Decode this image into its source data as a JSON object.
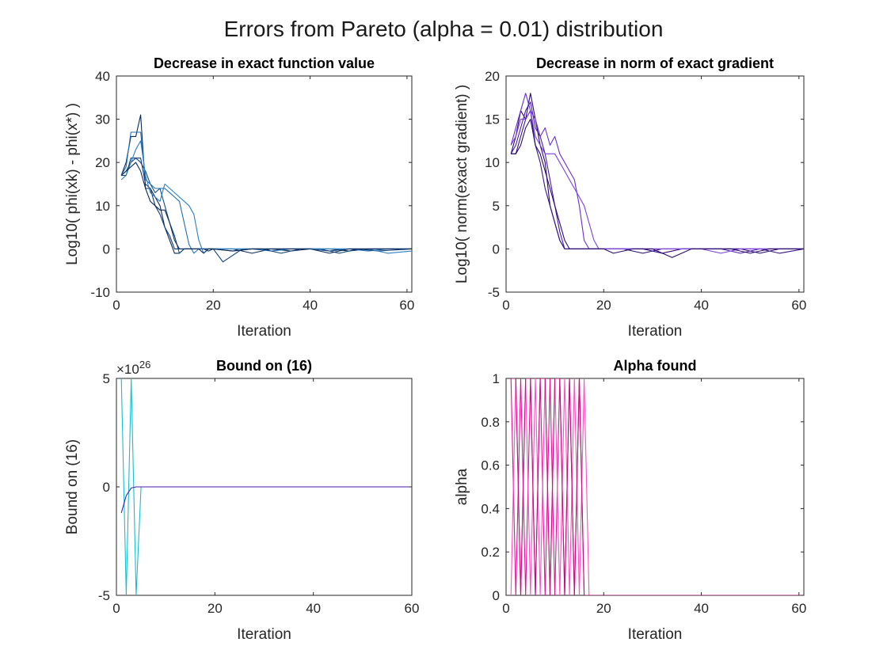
{
  "figure": {
    "title": "Errors from Pareto (alpha = 0.01) distribution"
  },
  "chart_data": [
    {
      "type": "line",
      "title": "Decrease in exact function value",
      "xlabel": "Iteration",
      "ylabel": "Log10( phi(xk) - phi(x*) )",
      "xlim": [
        0,
        61
      ],
      "ylim": [
        -10,
        40
      ],
      "xticks": [
        "0",
        "20",
        "40",
        "60"
      ],
      "yticks": [
        "-10",
        "0",
        "10",
        "20",
        "30",
        "40"
      ],
      "xtick_values": [
        0,
        20,
        40,
        60
      ],
      "ytick_values": [
        -10,
        0,
        10,
        20,
        30,
        40
      ],
      "colors": [
        "#0b2a5a",
        "#114a8a",
        "#1f6fb5",
        "#0e3c78",
        "#2a7fc0"
      ],
      "series": [
        {
          "x": [
            1,
            2,
            3,
            4,
            5,
            6,
            7,
            8,
            9,
            10,
            11,
            12,
            13,
            14,
            15,
            16,
            17,
            18,
            19,
            20,
            24,
            28,
            32,
            36,
            40,
            44,
            48,
            52,
            56,
            61
          ],
          "values": [
            17,
            20,
            26,
            26,
            31,
            14,
            14,
            12,
            10,
            5,
            2,
            -1,
            -1,
            0,
            0,
            0,
            0,
            0,
            -0.5,
            0,
            0,
            -1,
            0,
            -0.5,
            0,
            0,
            -0.5,
            0,
            0,
            0
          ]
        },
        {
          "x": [
            1,
            2,
            3,
            4,
            5,
            6,
            7,
            8,
            9,
            10,
            11,
            12,
            13,
            14,
            15,
            16,
            17,
            18,
            19,
            20,
            24,
            28,
            32,
            36,
            40,
            44,
            48,
            52,
            56,
            61
          ],
          "values": [
            17,
            18,
            20,
            21,
            20,
            18,
            15,
            13,
            14,
            10,
            6,
            3,
            -1,
            0,
            0,
            0,
            0,
            0,
            0,
            0,
            -0.5,
            0,
            0,
            0,
            0,
            -0.5,
            0,
            0,
            0,
            0
          ]
        },
        {
          "x": [
            1,
            2,
            3,
            4,
            5,
            6,
            7,
            8,
            9,
            10,
            11,
            12,
            13,
            14,
            15,
            16,
            17,
            18,
            19,
            20,
            24,
            28,
            32,
            36,
            40,
            44,
            48,
            52,
            56,
            61
          ],
          "values": [
            17,
            19,
            27,
            27,
            27,
            16,
            15,
            14,
            14,
            14,
            13,
            12,
            11,
            6,
            1,
            -1,
            0,
            0,
            0,
            0,
            0,
            0,
            -0.5,
            0,
            0,
            0,
            0,
            -0.5,
            0,
            0
          ]
        },
        {
          "x": [
            1,
            2,
            3,
            4,
            5,
            6,
            7,
            8,
            9,
            10,
            11,
            12,
            13,
            14,
            15,
            16,
            17,
            18,
            19,
            20,
            22,
            26,
            30,
            34,
            38,
            42,
            46,
            50,
            54,
            61
          ],
          "values": [
            17,
            17,
            21,
            21,
            21,
            15,
            14,
            10,
            8,
            5,
            3,
            0,
            0,
            0,
            0,
            0,
            0,
            0,
            0,
            0,
            -3,
            0,
            0,
            -1,
            0,
            0,
            -1,
            0,
            -0.5,
            0
          ]
        },
        {
          "x": [
            1,
            2,
            3,
            4,
            5,
            6,
            7,
            8,
            9,
            10,
            11,
            12,
            13,
            14,
            15,
            16,
            17,
            18,
            19,
            20,
            24,
            28,
            32,
            36,
            40,
            44,
            48,
            52,
            56,
            61
          ],
          "values": [
            16,
            17,
            20,
            23,
            25,
            17,
            13,
            12,
            11,
            15,
            14,
            13,
            12,
            11,
            10,
            8,
            2,
            -1,
            0,
            0,
            0,
            0,
            0,
            0,
            0,
            0,
            0,
            0,
            -1,
            -0.5
          ]
        },
        {
          "x": [
            1,
            2,
            3,
            4,
            5,
            6,
            7,
            8,
            9,
            10,
            11,
            12,
            13,
            14,
            15,
            16,
            17,
            18,
            19,
            20,
            24,
            28,
            32,
            36,
            40,
            44,
            48,
            52,
            56,
            61
          ],
          "values": [
            17,
            18,
            19,
            20,
            18,
            14,
            11,
            10,
            9,
            9,
            6,
            2,
            0,
            0,
            0,
            0,
            0,
            -1,
            0,
            0,
            -0.5,
            0,
            0,
            0,
            0,
            -1,
            0,
            0,
            0,
            0
          ]
        }
      ]
    },
    {
      "type": "line",
      "title": "Decrease in norm of exact gradient",
      "xlabel": "Iteration",
      "ylabel": "Log10( norm(exact gradient) )",
      "xlim": [
        0,
        61
      ],
      "ylim": [
        -5,
        20
      ],
      "xticks": [
        "0",
        "20",
        "40",
        "60"
      ],
      "yticks": [
        "-5",
        "0",
        "5",
        "10",
        "15",
        "20"
      ],
      "xtick_values": [
        0,
        20,
        40,
        60
      ],
      "ytick_values": [
        -5,
        0,
        5,
        10,
        15,
        20
      ],
      "colors": [
        "#2a0a6e",
        "#4b1ca8",
        "#6a2fd0",
        "#3a138a",
        "#7b3fe0"
      ],
      "series": [
        {
          "x": [
            1,
            2,
            3,
            4,
            5,
            6,
            7,
            8,
            9,
            10,
            11,
            12,
            13,
            14,
            15,
            16,
            17,
            18,
            19,
            20,
            24,
            28,
            32,
            36,
            40,
            44,
            48,
            52,
            56,
            61
          ],
          "values": [
            11,
            13,
            16,
            15,
            18,
            15,
            12,
            10,
            5,
            3,
            1,
            0,
            0,
            0,
            0,
            0,
            0,
            0,
            0,
            0,
            0,
            -0.5,
            0,
            0,
            0,
            0,
            0,
            -0.5,
            0,
            0
          ]
        },
        {
          "x": [
            1,
            2,
            3,
            4,
            5,
            6,
            7,
            8,
            9,
            10,
            11,
            12,
            13,
            14,
            15,
            16,
            17,
            18,
            19,
            20,
            24,
            28,
            32,
            36,
            40,
            44,
            48,
            52,
            56,
            61
          ],
          "values": [
            11,
            12,
            14,
            16,
            17,
            14,
            13,
            11,
            8,
            5,
            2,
            0,
            0,
            0,
            0,
            0,
            0,
            0,
            0,
            0,
            0,
            0,
            -0.5,
            0,
            0,
            0,
            -0.5,
            0,
            0,
            0
          ]
        },
        {
          "x": [
            1,
            2,
            3,
            4,
            5,
            6,
            7,
            8,
            9,
            10,
            11,
            12,
            13,
            14,
            15,
            16,
            17,
            18,
            19,
            20,
            24,
            28,
            32,
            36,
            40,
            44,
            48,
            52,
            56,
            61
          ],
          "values": [
            12,
            14,
            16,
            18,
            16,
            15,
            13,
            14,
            12,
            13,
            11,
            10,
            9,
            8,
            5,
            1,
            0,
            0,
            0,
            0,
            0,
            0,
            0,
            0,
            0,
            0,
            0,
            0,
            0,
            0
          ]
        },
        {
          "x": [
            1,
            2,
            3,
            4,
            5,
            6,
            7,
            8,
            9,
            10,
            11,
            12,
            13,
            14,
            15,
            16,
            17,
            18,
            19,
            20,
            24,
            28,
            32,
            36,
            40,
            44,
            48,
            52,
            56,
            61
          ],
          "values": [
            11,
            11,
            13,
            15,
            16,
            12,
            10,
            7,
            5,
            3,
            1,
            0,
            0,
            0,
            0,
            0,
            0,
            0,
            0,
            0,
            0,
            0,
            -0.5,
            0,
            0,
            0,
            0,
            0,
            -0.5,
            0
          ]
        },
        {
          "x": [
            1,
            2,
            3,
            4,
            5,
            6,
            7,
            8,
            9,
            10,
            11,
            12,
            13,
            14,
            15,
            16,
            17,
            18,
            19,
            20,
            24,
            28,
            32,
            36,
            40,
            44,
            48,
            52,
            56,
            61
          ],
          "values": [
            12,
            13,
            15,
            15,
            16,
            13,
            12,
            11,
            11,
            11,
            10,
            9,
            8,
            7,
            6,
            5,
            3,
            1,
            0,
            0,
            0,
            0,
            0,
            0,
            0,
            -0.5,
            0,
            0,
            0,
            0
          ]
        },
        {
          "x": [
            1,
            2,
            3,
            4,
            5,
            6,
            7,
            8,
            9,
            10,
            11,
            12,
            13,
            14,
            15,
            16,
            17,
            18,
            19,
            20,
            22,
            26,
            30,
            34,
            38,
            42,
            46,
            50,
            54,
            61
          ],
          "values": [
            11,
            11,
            12,
            14,
            15,
            12,
            11,
            9,
            7,
            5,
            3,
            1,
            0,
            0,
            0,
            0,
            0,
            0,
            0,
            0,
            -0.5,
            0,
            0,
            -1,
            0,
            0,
            0,
            -0.5,
            0,
            0
          ]
        }
      ]
    },
    {
      "type": "line",
      "title": "Bound on (16)",
      "xlabel": "Iteration",
      "ylabel": "Bound on (16)",
      "exponent_label": "×10",
      "exponent_power": "26",
      "xlim": [
        0,
        60
      ],
      "ylim": [
        -5,
        5
      ],
      "xticks": [
        "0",
        "20",
        "40",
        "60"
      ],
      "yticks": [
        "-5",
        "0",
        "5"
      ],
      "xtick_values": [
        0,
        20,
        40,
        60
      ],
      "ytick_values": [
        -5,
        0,
        5
      ],
      "colors": [
        "#17becf",
        "#4b1ca8"
      ],
      "series": [
        {
          "x": [
            1,
            2,
            3,
            4,
            5,
            6,
            60
          ],
          "values": [
            5,
            -5,
            5,
            -5,
            0,
            0,
            0
          ]
        },
        {
          "x": [
            1,
            2,
            3,
            4,
            5,
            6,
            60
          ],
          "values": [
            -1.2,
            -0.4,
            -0.05,
            0,
            0,
            0,
            0
          ]
        }
      ]
    },
    {
      "type": "line",
      "title": "Alpha found",
      "xlabel": "Iteration",
      "ylabel": "alpha",
      "xlim": [
        0,
        61
      ],
      "ylim": [
        0,
        1
      ],
      "xticks": [
        "0",
        "20",
        "40",
        "60"
      ],
      "yticks": [
        "0",
        "0.2",
        "0.4",
        "0.6",
        "0.8",
        "1"
      ],
      "xtick_values": [
        0,
        20,
        40,
        60
      ],
      "ytick_values": [
        0,
        0.2,
        0.4,
        0.6,
        0.8,
        1
      ],
      "colors": [
        "#e0129a",
        "#ff4fc4",
        "#c2107f"
      ],
      "series": [
        {
          "x": [
            1,
            2,
            3,
            4,
            5,
            6,
            7,
            8,
            9,
            10,
            11,
            12,
            13,
            14,
            15,
            16,
            17,
            61
          ],
          "values": [
            1,
            0,
            1,
            0,
            1,
            0,
            1,
            0,
            1,
            0,
            1,
            0,
            1,
            0,
            1,
            0,
            0,
            0
          ]
        },
        {
          "x": [
            1,
            2,
            3,
            4,
            5,
            6,
            7,
            8,
            9,
            10,
            11,
            12,
            13,
            14,
            15,
            16,
            17,
            61
          ],
          "values": [
            0,
            1,
            0,
            1,
            0,
            1,
            0,
            1,
            0,
            1,
            0,
            1,
            0,
            1,
            0,
            1,
            0,
            0
          ]
        },
        {
          "x": [
            1,
            2,
            3,
            4,
            5,
            6,
            7,
            8,
            9,
            10,
            11,
            12,
            13,
            14,
            15,
            16,
            61
          ],
          "values": [
            1,
            1,
            0,
            1,
            1,
            0,
            1,
            1,
            0,
            1,
            1,
            0,
            1,
            0,
            1,
            0,
            0
          ]
        }
      ]
    }
  ]
}
